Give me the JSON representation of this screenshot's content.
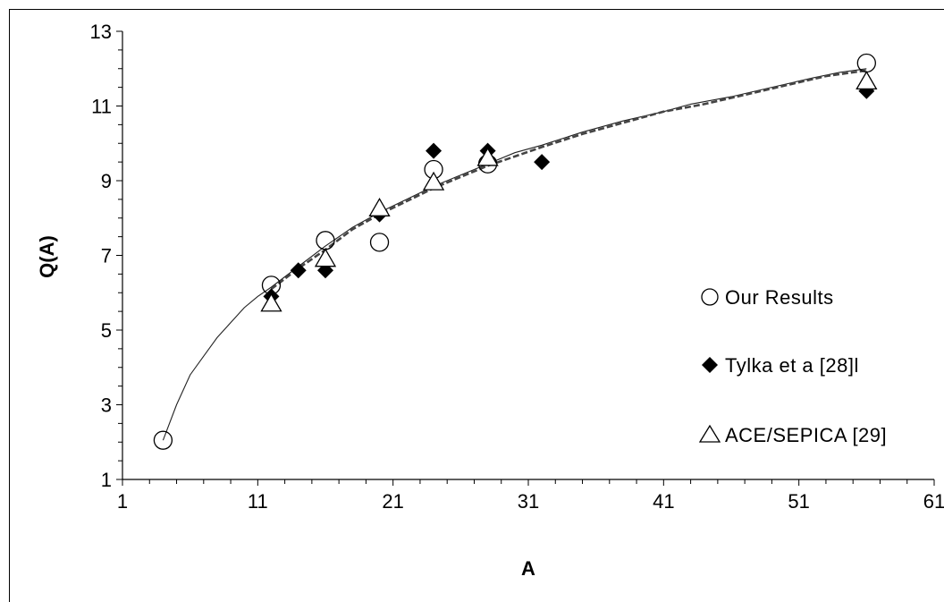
{
  "chart_data": {
    "type": "scatter",
    "title": "",
    "xlabel": "A",
    "ylabel": "Q(A)",
    "xlim": [
      1,
      61
    ],
    "ylim": [
      1,
      13
    ],
    "x_ticks": [
      1,
      11,
      21,
      31,
      41,
      51,
      61
    ],
    "y_ticks": [
      1,
      3,
      5,
      7,
      9,
      11,
      13
    ],
    "x_tick_labels": [
      "1",
      "11",
      "21",
      "31",
      "41",
      "51",
      "61"
    ],
    "y_tick_labels": [
      "1",
      "3",
      "5",
      "7",
      "9",
      "11",
      "13"
    ],
    "grid": false,
    "legend_position": "right",
    "series": [
      {
        "name": "Our Results",
        "marker": "open-circle",
        "points": [
          {
            "x": 4,
            "y": 2.05
          },
          {
            "x": 12,
            "y": 6.2
          },
          {
            "x": 16,
            "y": 7.4
          },
          {
            "x": 20,
            "y": 7.35
          },
          {
            "x": 24,
            "y": 9.3
          },
          {
            "x": 28,
            "y": 9.45
          },
          {
            "x": 56,
            "y": 12.15
          }
        ]
      },
      {
        "name": "Tylka et a [28]l",
        "marker": "filled-diamond",
        "points": [
          {
            "x": 12,
            "y": 5.9
          },
          {
            "x": 14,
            "y": 6.6
          },
          {
            "x": 16,
            "y": 6.6
          },
          {
            "x": 20,
            "y": 8.1
          },
          {
            "x": 24,
            "y": 9.8
          },
          {
            "x": 28,
            "y": 9.8
          },
          {
            "x": 32,
            "y": 9.5
          },
          {
            "x": 56,
            "y": 11.4
          }
        ]
      },
      {
        "name": "ACE/SEPICA [29]",
        "marker": "open-triangle",
        "points": [
          {
            "x": 12,
            "y": 5.7
          },
          {
            "x": 16,
            "y": 6.9
          },
          {
            "x": 20,
            "y": 8.25
          },
          {
            "x": 24,
            "y": 8.95
          },
          {
            "x": 28,
            "y": 9.6
          },
          {
            "x": 56,
            "y": 11.65
          }
        ]
      }
    ],
    "fit_lines": [
      {
        "style": "solid",
        "points": [
          {
            "x": 4,
            "y": 2.05
          },
          {
            "x": 5,
            "y": 3.0
          },
          {
            "x": 6,
            "y": 3.8
          },
          {
            "x": 7,
            "y": 4.3
          },
          {
            "x": 8,
            "y": 4.8
          },
          {
            "x": 9,
            "y": 5.2
          },
          {
            "x": 10,
            "y": 5.6
          },
          {
            "x": 11,
            "y": 5.9
          },
          {
            "x": 12,
            "y": 6.15
          },
          {
            "x": 14,
            "y": 6.7
          },
          {
            "x": 16,
            "y": 7.25
          },
          {
            "x": 18,
            "y": 7.75
          },
          {
            "x": 20,
            "y": 8.15
          },
          {
            "x": 22,
            "y": 8.5
          },
          {
            "x": 24,
            "y": 8.85
          },
          {
            "x": 26,
            "y": 9.15
          },
          {
            "x": 28,
            "y": 9.45
          },
          {
            "x": 30,
            "y": 9.75
          },
          {
            "x": 32,
            "y": 9.95
          },
          {
            "x": 35,
            "y": 10.3
          },
          {
            "x": 38,
            "y": 10.6
          },
          {
            "x": 41,
            "y": 10.85
          },
          {
            "x": 43,
            "y": 11.05
          },
          {
            "x": 46,
            "y": 11.25
          },
          {
            "x": 49,
            "y": 11.5
          },
          {
            "x": 52,
            "y": 11.75
          },
          {
            "x": 54,
            "y": 11.9
          },
          {
            "x": 56,
            "y": 12.0
          }
        ]
      },
      {
        "style": "dashed",
        "points": [
          {
            "x": 12,
            "y": 6.1
          },
          {
            "x": 14,
            "y": 6.65
          },
          {
            "x": 16,
            "y": 7.15
          },
          {
            "x": 18,
            "y": 7.7
          },
          {
            "x": 20,
            "y": 8.1
          },
          {
            "x": 22,
            "y": 8.45
          },
          {
            "x": 24,
            "y": 8.8
          },
          {
            "x": 26,
            "y": 9.1
          },
          {
            "x": 28,
            "y": 9.4
          },
          {
            "x": 30,
            "y": 9.65
          },
          {
            "x": 32,
            "y": 9.9
          },
          {
            "x": 35,
            "y": 10.25
          },
          {
            "x": 38,
            "y": 10.55
          },
          {
            "x": 41,
            "y": 10.85
          },
          {
            "x": 44,
            "y": 11.05
          },
          {
            "x": 47,
            "y": 11.3
          },
          {
            "x": 50,
            "y": 11.55
          },
          {
            "x": 53,
            "y": 11.8
          },
          {
            "x": 56,
            "y": 11.95
          }
        ]
      }
    ]
  }
}
